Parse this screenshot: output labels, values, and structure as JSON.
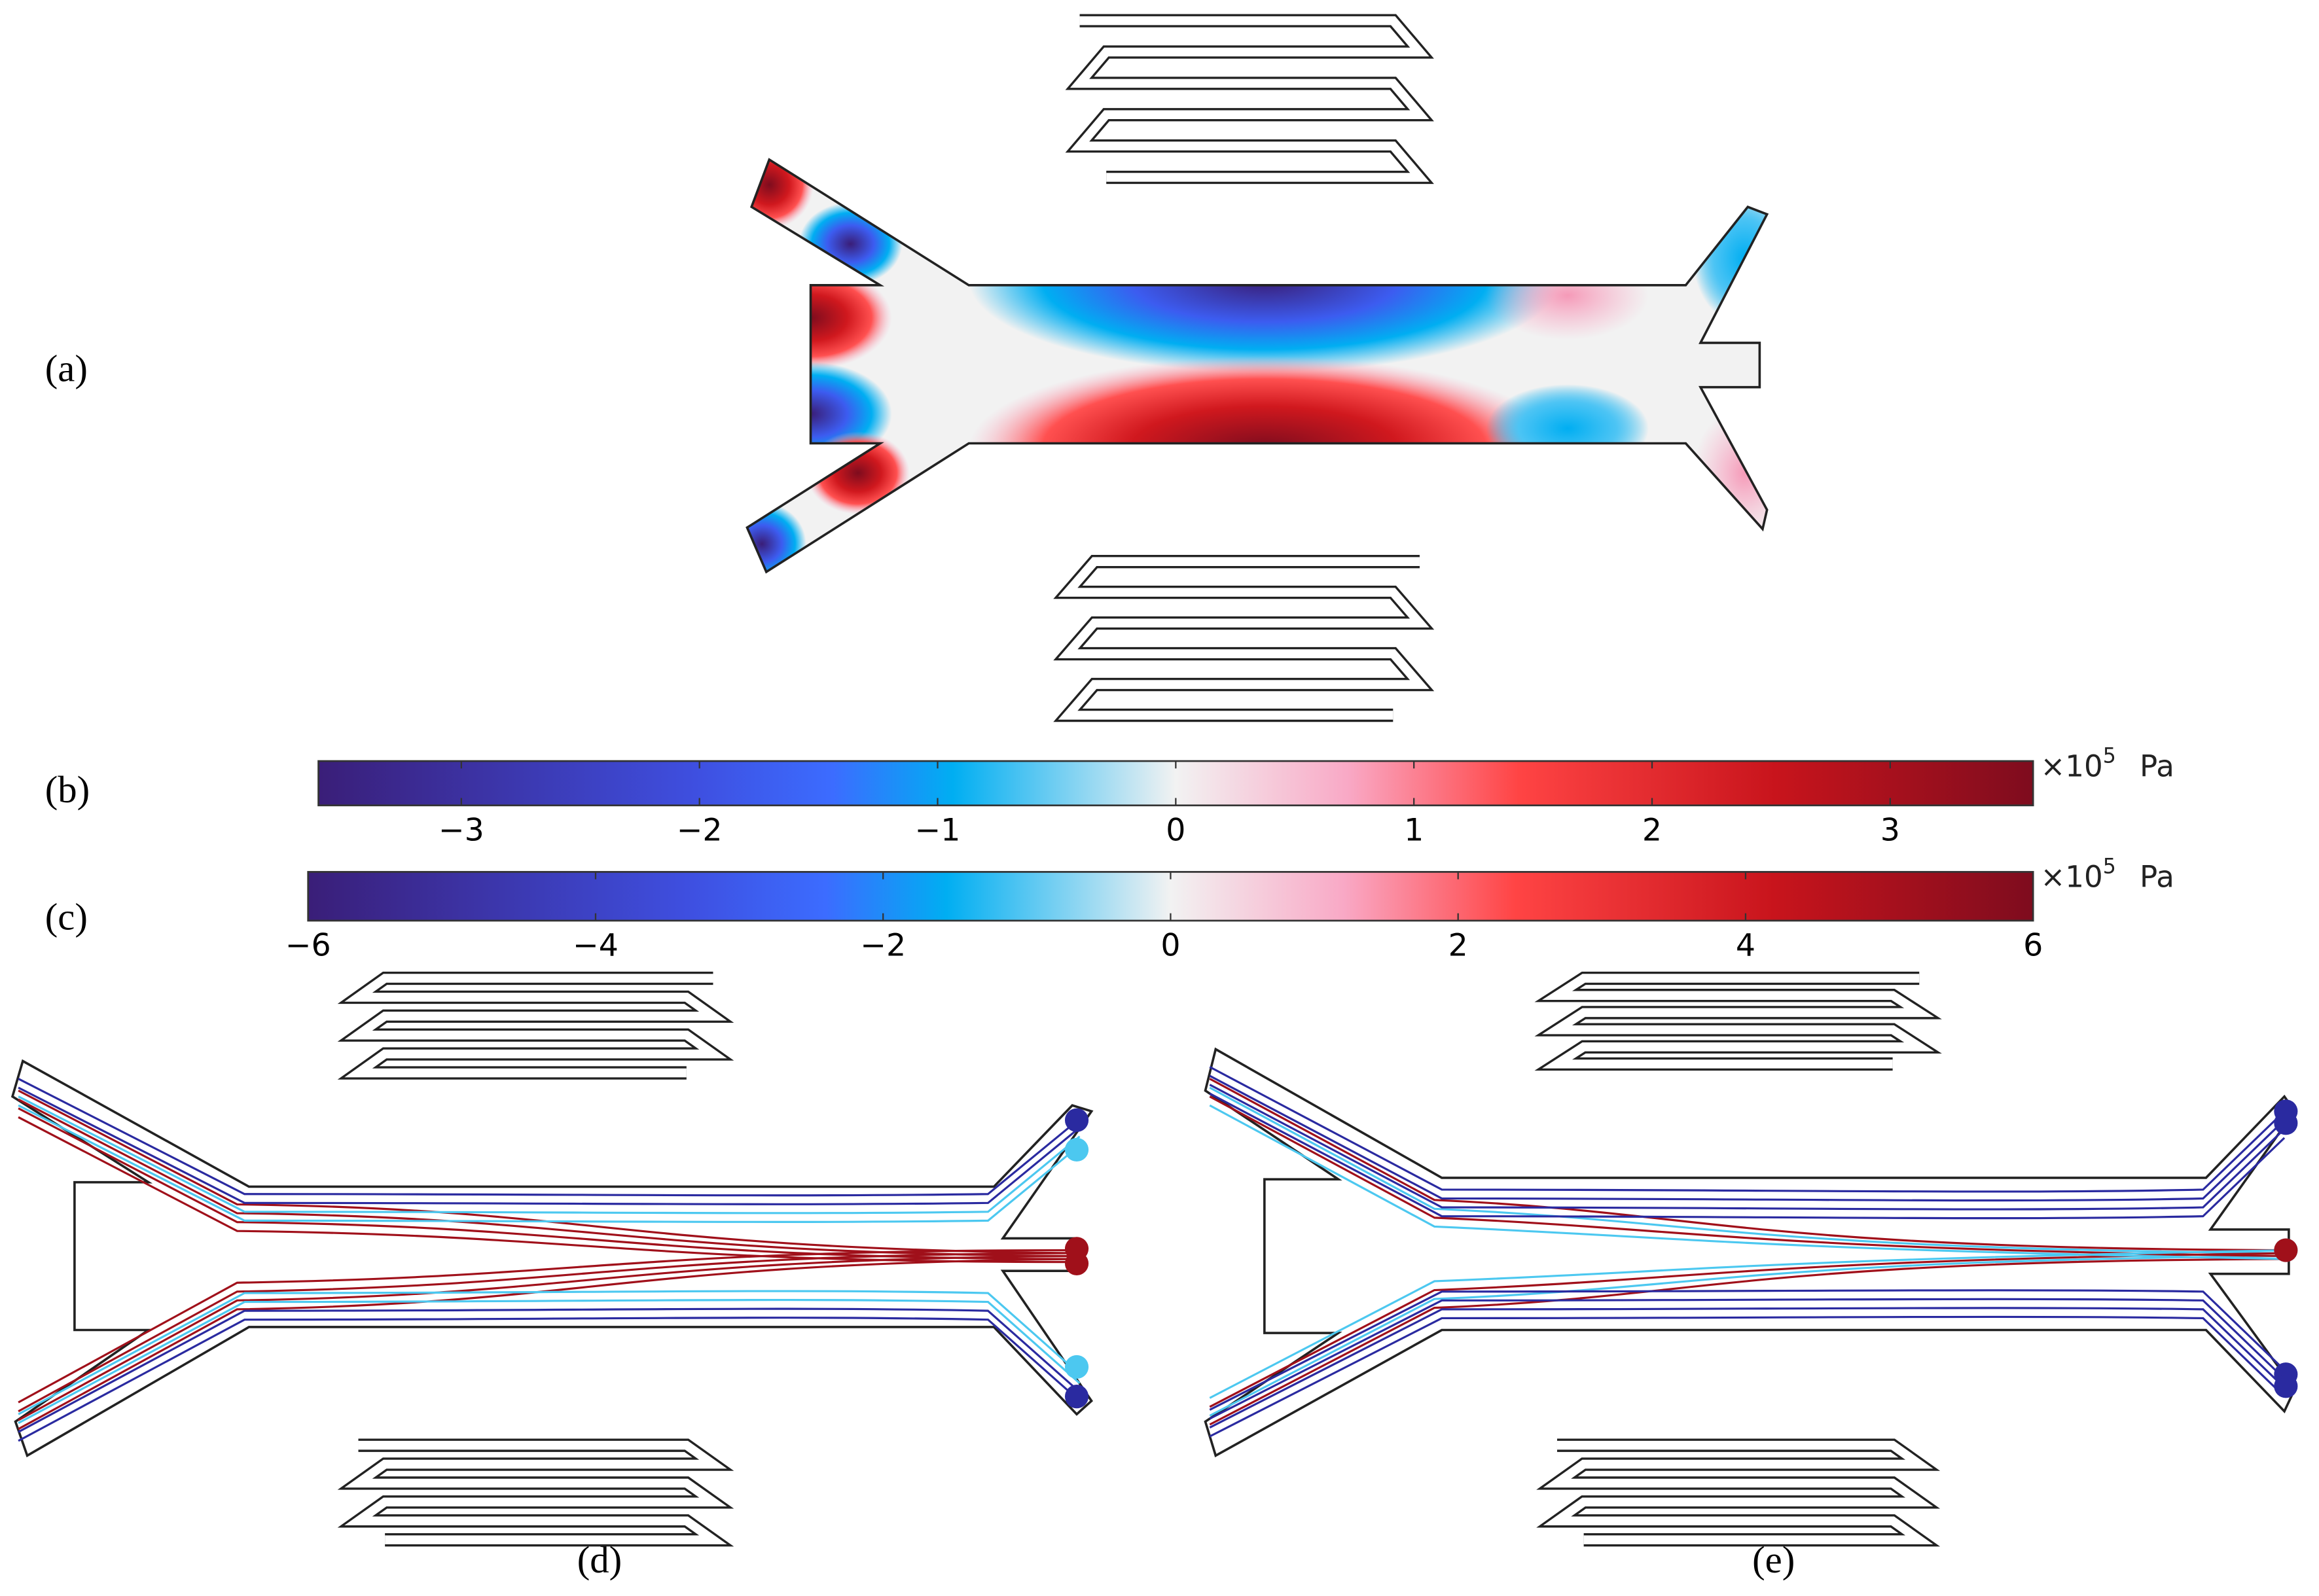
{
  "panels": {
    "a": "(a)",
    "b": "(b)",
    "c": "(c)",
    "d": "(d)",
    "e": "(e)"
  },
  "colorbars": [
    {
      "range": [
        -3.6,
        3.6
      ],
      "multiplier": "×10",
      "exponent": "5",
      "unit": "Pa",
      "ticks": [
        {
          "value": -3,
          "label": "−3"
        },
        {
          "value": -2,
          "label": "−2"
        },
        {
          "value": -1,
          "label": "−1"
        },
        0,
        1,
        2,
        3
      ]
    },
    {
      "range": [
        -6,
        6
      ],
      "multiplier": "×10",
      "exponent": "5",
      "unit": "Pa",
      "ticks": [
        {
          "value": -6,
          "label": "−6"
        },
        {
          "value": -4,
          "label": "−4"
        },
        {
          "value": -2,
          "label": "−2"
        },
        0,
        2,
        4,
        6
      ]
    }
  ]
}
